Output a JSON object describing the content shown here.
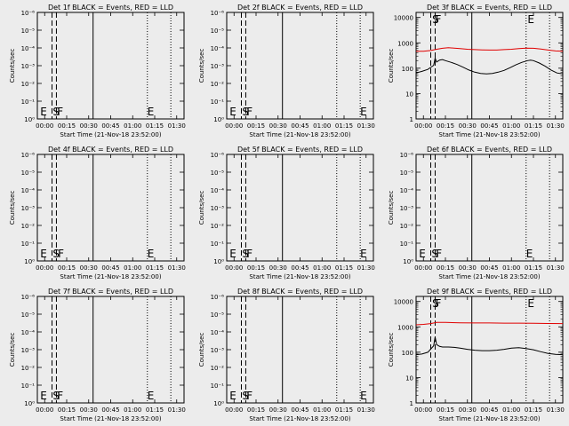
{
  "chart_data": [
    {
      "type": "line",
      "title": "Det 1f BLACK = Events, RED = LLD",
      "xlabel": "Start Time (21-Nov-18 23:52:00)",
      "ylabel": "Counts/sec",
      "yscale": "log",
      "yticks": [
        "10⁰",
        "10⁻¹",
        "10⁻²",
        "10⁻³",
        "10⁻⁴",
        "10⁻⁵",
        "10⁻⁶"
      ],
      "xticks": [
        "00:00",
        "00:15",
        "00:30",
        "00:45",
        "01:00",
        "01:15",
        "01:30"
      ],
      "xlim_min": [
        0,
        100
      ],
      "dashed_lines_min": [
        10,
        13
      ],
      "solid_lines_min": [
        38
      ],
      "dotted_lines_min": [
        75,
        91
      ],
      "markers": [
        {
          "label": "E",
          "x_min": 2
        },
        {
          "label": "S",
          "x_min": 10.5
        },
        {
          "label": "F",
          "x_min": 13.5
        },
        {
          "label": "E",
          "x_min": 75
        }
      ],
      "series": []
    },
    {
      "type": "line",
      "title": "Det 2f BLACK = Events, RED = LLD",
      "xlabel": "Start Time (21-Nov-18 23:52:00)",
      "ylabel": "Counts/sec",
      "yscale": "log",
      "yticks": [
        "10⁰",
        "10⁻¹",
        "10⁻²",
        "10⁻³",
        "10⁻⁴",
        "10⁻⁵",
        "10⁻⁶"
      ],
      "xticks": [
        "00:00",
        "00:15",
        "00:30",
        "00:45",
        "01:00",
        "01:15",
        "01:30"
      ],
      "xlim_min": [
        0,
        100
      ],
      "dashed_lines_min": [
        10,
        13
      ],
      "solid_lines_min": [
        38
      ],
      "dotted_lines_min": [
        75,
        91
      ],
      "markers": [
        {
          "label": "E",
          "x_min": 2
        },
        {
          "label": "S",
          "x_min": 10.5
        },
        {
          "label": "F",
          "x_min": 13.5
        },
        {
          "label": "E",
          "x_min": 91
        }
      ],
      "series": []
    },
    {
      "type": "line",
      "title": "Det 3f BLACK = Events, RED = LLD",
      "xlabel": "Start Time (21-Nov-18 23:52:00)",
      "ylabel": "Counts/sec",
      "yscale": "log",
      "yticks": [
        "1",
        "10",
        "100",
        "1000",
        "10000"
      ],
      "xticks": [
        "00:00",
        "00:15",
        "00:30",
        "00:45",
        "01:00",
        "01:15",
        "01:30"
      ],
      "xlim_min": [
        0,
        100
      ],
      "dashed_lines_min": [
        10,
        13
      ],
      "solid_lines_min": [
        38
      ],
      "dotted_lines_min": [
        75,
        91
      ],
      "markers": [
        {
          "label": "S",
          "x_min": 11
        },
        {
          "label": "F",
          "x_min": 13
        },
        {
          "label": "E",
          "x_min": 76
        }
      ],
      "series": [
        {
          "color": "#e00000",
          "x": [
            0,
            5,
            10,
            14,
            18,
            22,
            26,
            30,
            35,
            40,
            45,
            50,
            55,
            60,
            65,
            70,
            75,
            80,
            85,
            90,
            95,
            100
          ],
          "y": [
            470,
            470,
            500,
            560,
            610,
            640,
            620,
            590,
            560,
            540,
            530,
            520,
            520,
            540,
            560,
            590,
            620,
            610,
            570,
            520,
            480,
            470
          ]
        },
        {
          "color": "#000000",
          "x": [
            0,
            4,
            8,
            12,
            13,
            14,
            16,
            18,
            20,
            24,
            28,
            32,
            36,
            40,
            44,
            48,
            52,
            56,
            60,
            64,
            68,
            72,
            76,
            78,
            80,
            84,
            88,
            92,
            96,
            100
          ],
          "y": [
            65,
            75,
            90,
            130,
            250,
            175,
            210,
            220,
            200,
            170,
            140,
            110,
            85,
            70,
            62,
            60,
            62,
            70,
            82,
            105,
            135,
            170,
            200,
            210,
            200,
            160,
            120,
            85,
            65,
            60
          ]
        }
      ]
    },
    {
      "type": "line",
      "title": "Det 4f BLACK = Events, RED = LLD",
      "xlabel": "Start Time (21-Nov-18 23:52:00)",
      "ylabel": "Counts/sec",
      "yscale": "log",
      "yticks": [
        "10⁰",
        "10⁻¹",
        "10⁻²",
        "10⁻³",
        "10⁻⁴",
        "10⁻⁵",
        "10⁻⁶"
      ],
      "xticks": [
        "00:00",
        "00:15",
        "00:30",
        "00:45",
        "01:00",
        "01:15",
        "01:30"
      ],
      "xlim_min": [
        0,
        100
      ],
      "dashed_lines_min": [
        10,
        13
      ],
      "solid_lines_min": [
        38
      ],
      "dotted_lines_min": [
        75,
        91
      ],
      "markers": [
        {
          "label": "E",
          "x_min": 2
        },
        {
          "label": "S",
          "x_min": 10.5
        },
        {
          "label": "F",
          "x_min": 14
        },
        {
          "label": "E",
          "x_min": 75
        }
      ],
      "series": []
    },
    {
      "type": "line",
      "title": "Det 5f BLACK = Events, RED = LLD",
      "xlabel": "Start Time (21-Nov-18 23:52:00)",
      "ylabel": "Counts/sec",
      "yscale": "log",
      "yticks": [
        "10⁰",
        "10⁻¹",
        "10⁻²",
        "10⁻³",
        "10⁻⁴",
        "10⁻⁵",
        "10⁻⁶"
      ],
      "xticks": [
        "00:00",
        "00:15",
        "00:30",
        "00:45",
        "01:00",
        "01:15",
        "01:30"
      ],
      "xlim_min": [
        0,
        100
      ],
      "dashed_lines_min": [
        10,
        13
      ],
      "solid_lines_min": [
        38
      ],
      "dotted_lines_min": [
        75,
        91
      ],
      "markers": [
        {
          "label": "E",
          "x_min": 2
        },
        {
          "label": "S",
          "x_min": 10.5
        },
        {
          "label": "F",
          "x_min": 13.5
        },
        {
          "label": "E",
          "x_min": 91
        }
      ],
      "series": []
    },
    {
      "type": "line",
      "title": "Det 6f BLACK = Events, RED = LLD",
      "xlabel": "Start Time (21-Nov-18 23:52:00)",
      "ylabel": "Counts/sec",
      "yscale": "log",
      "yticks": [
        "10⁰",
        "10⁻¹",
        "10⁻²",
        "10⁻³",
        "10⁻⁴",
        "10⁻⁵",
        "10⁻⁶"
      ],
      "xticks": [
        "00:00",
        "00:15",
        "00:30",
        "00:45",
        "01:00",
        "01:15",
        "01:30"
      ],
      "xlim_min": [
        0,
        100
      ],
      "dashed_lines_min": [
        10,
        13
      ],
      "solid_lines_min": [
        38
      ],
      "dotted_lines_min": [
        75,
        91
      ],
      "markers": [
        {
          "label": "E",
          "x_min": 2
        },
        {
          "label": "S",
          "x_min": 10.5
        },
        {
          "label": "F",
          "x_min": 13.5
        },
        {
          "label": "E",
          "x_min": 75
        }
      ],
      "series": []
    },
    {
      "type": "line",
      "title": "Det 7f BLACK = Events, RED = LLD",
      "xlabel": "Start Time (21-Nov-18 23:52:00)",
      "ylabel": "Counts/sec",
      "yscale": "log",
      "yticks": [
        "10⁰",
        "10⁻¹",
        "10⁻²",
        "10⁻³",
        "10⁻⁴",
        "10⁻⁵",
        "10⁻⁶"
      ],
      "xticks": [
        "00:00",
        "00:15",
        "00:30",
        "00:45",
        "01:00",
        "01:15",
        "01:30"
      ],
      "xlim_min": [
        0,
        100
      ],
      "dashed_lines_min": [
        10,
        13
      ],
      "solid_lines_min": [
        38
      ],
      "dotted_lines_min": [
        75,
        91
      ],
      "markers": [
        {
          "label": "E",
          "x_min": 2
        },
        {
          "label": "S",
          "x_min": 10.5
        },
        {
          "label": "F",
          "x_min": 13.5
        },
        {
          "label": "E",
          "x_min": 75
        }
      ],
      "series": []
    },
    {
      "type": "line",
      "title": "Det 8f BLACK = Events, RED = LLD",
      "xlabel": "Start Time (21-Nov-18 23:52:00)",
      "ylabel": "Counts/sec",
      "yscale": "log",
      "yticks": [
        "10⁰",
        "10⁻¹",
        "10⁻²",
        "10⁻³",
        "10⁻⁴",
        "10⁻⁵",
        "10⁻⁶"
      ],
      "xticks": [
        "00:00",
        "00:15",
        "00:30",
        "00:45",
        "01:00",
        "01:15",
        "01:30"
      ],
      "xlim_min": [
        0,
        100
      ],
      "dashed_lines_min": [
        10,
        13
      ],
      "solid_lines_min": [
        38
      ],
      "dotted_lines_min": [
        75,
        91
      ],
      "markers": [
        {
          "label": "E",
          "x_min": 2
        },
        {
          "label": "S",
          "x_min": 10.5
        },
        {
          "label": "F",
          "x_min": 13.5
        },
        {
          "label": "E",
          "x_min": 91
        }
      ],
      "series": []
    },
    {
      "type": "line",
      "title": "Det 9f BLACK = Events, RED = LLD",
      "xlabel": "Start Time (21-Nov-18 23:52:00)",
      "ylabel": "Counts/sec",
      "yscale": "log",
      "yticks": [
        "1",
        "10",
        "100",
        "1000",
        "10000"
      ],
      "xticks": [
        "00:00",
        "00:15",
        "00:30",
        "00:45",
        "01:00",
        "01:15",
        "01:30"
      ],
      "xlim_min": [
        0,
        100
      ],
      "dashed_lines_min": [
        10,
        13
      ],
      "solid_lines_min": [
        38
      ],
      "dotted_lines_min": [
        75,
        91
      ],
      "markers": [
        {
          "label": "S",
          "x_min": 11
        },
        {
          "label": "F",
          "x_min": 13
        },
        {
          "label": "E",
          "x_min": 76
        }
      ],
      "series": [
        {
          "color": "#e00000",
          "x": [
            0,
            5,
            10,
            14,
            20,
            30,
            40,
            50,
            60,
            70,
            80,
            90,
            100
          ],
          "y": [
            1200,
            1250,
            1350,
            1500,
            1500,
            1450,
            1420,
            1420,
            1400,
            1400,
            1380,
            1360,
            1350
          ]
        },
        {
          "color": "#000000",
          "x": [
            0,
            4,
            8,
            12,
            13,
            14,
            16,
            18,
            22,
            26,
            30,
            35,
            40,
            45,
            50,
            55,
            60,
            65,
            70,
            75,
            80,
            85,
            90,
            95,
            100
          ],
          "y": [
            80,
            85,
            100,
            180,
            400,
            200,
            170,
            160,
            160,
            155,
            145,
            130,
            120,
            115,
            115,
            120,
            130,
            145,
            150,
            140,
            125,
            105,
            90,
            82,
            80
          ]
        }
      ]
    }
  ]
}
